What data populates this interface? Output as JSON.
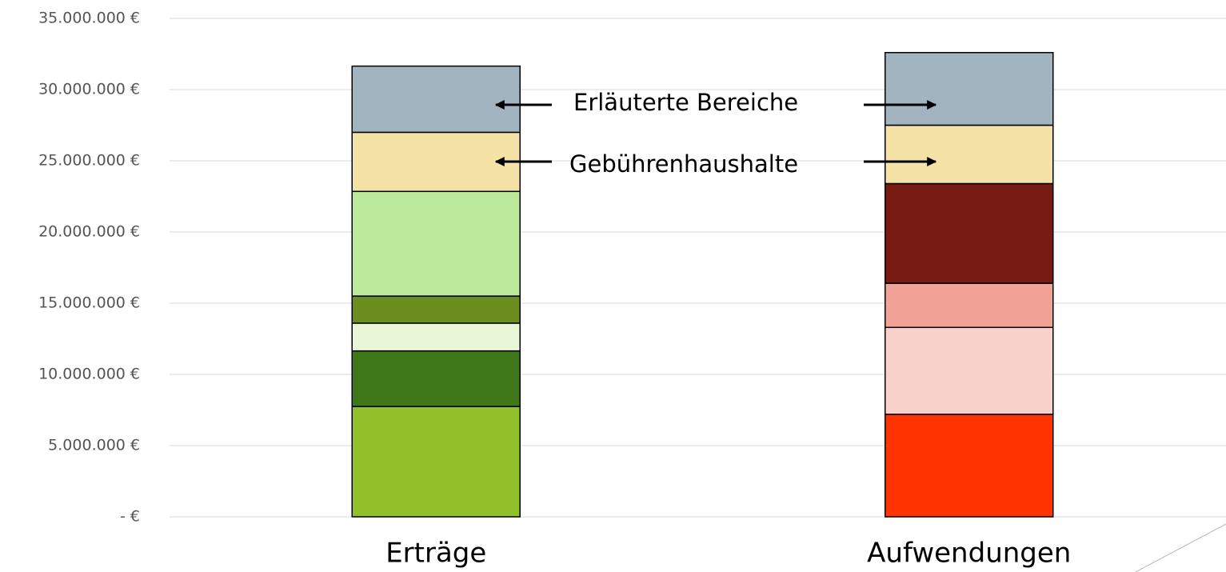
{
  "chart_data": {
    "type": "stacked-bar",
    "categories": [
      "Erträge",
      "Aufwendungen"
    ],
    "stacks": [
      {
        "segments": [
          {
            "color": "#92c02a",
            "value": 7750000
          },
          {
            "color": "#3f7819",
            "value": 3900000
          },
          {
            "color": "#e9f7d6",
            "value": 1950000
          },
          {
            "color": "#6b8e1e",
            "value": 1900000
          },
          {
            "color": "#bbea9a",
            "value": 7350000
          },
          {
            "color": "#f5e2a6",
            "value": 4150000
          },
          {
            "color": "#a2b4bf",
            "value": 4650000
          }
        ]
      },
      {
        "segments": [
          {
            "color": "#ff3400",
            "value": 7200000
          },
          {
            "color": "#f8d1cb",
            "value": 6100000
          },
          {
            "color": "#f2a397",
            "value": 3100000
          },
          {
            "color": "#781b12",
            "value": 7000000
          },
          {
            "color": "#f5e2a6",
            "value": 4100000
          },
          {
            "color": "#a2b4bf",
            "value": 5100000
          }
        ]
      }
    ],
    "annotations": [
      "Erläuterte Bereiche",
      "Gebührenhaushalte"
    ],
    "ylim": [
      0,
      35000000
    ],
    "yticks": [
      {
        "value": 0,
        "label": "-   €"
      },
      {
        "value": 5000000,
        "label": "5.000.000 €"
      },
      {
        "value": 10000000,
        "label": "10.000.000 €"
      },
      {
        "value": 15000000,
        "label": "15.000.000 €"
      },
      {
        "value": 20000000,
        "label": "20.000.000 €"
      },
      {
        "value": 25000000,
        "label": "25.000.000 €"
      },
      {
        "value": 30000000,
        "label": "30.000.000 €"
      },
      {
        "value": 35000000,
        "label": "35.000.000 €"
      }
    ],
    "grid": true
  }
}
